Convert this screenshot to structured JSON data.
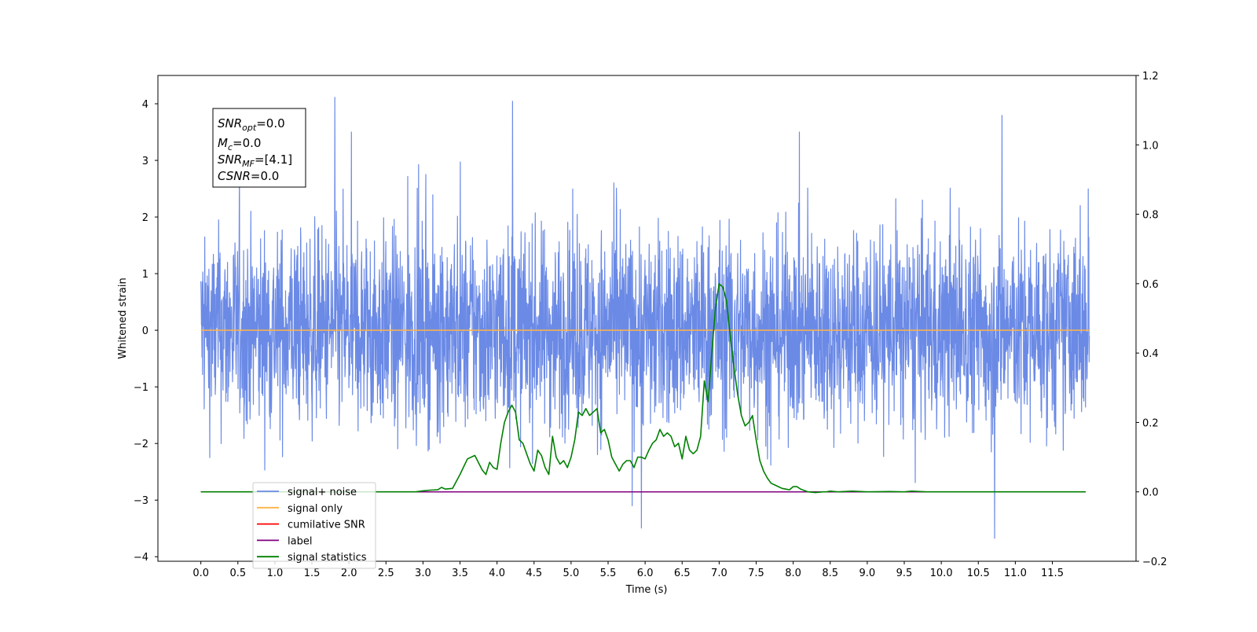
{
  "chart_data": {
    "type": "line",
    "xlabel": "Time (s)",
    "ylabel": "Whitened strain",
    "xlim": [
      -0.58,
      12.63
    ],
    "ylim": [
      -4.08,
      4.5
    ],
    "y2lim": [
      -0.2,
      1.2
    ],
    "x_ticks": [
      "0.0",
      "0.5",
      "1.0",
      "1.5",
      "2.0",
      "2.5",
      "3.0",
      "3.5",
      "4.0",
      "4.5",
      "5.0",
      "5.5",
      "6.0",
      "6.5",
      "7.0",
      "7.5",
      "8.0",
      "8.5",
      "9.0",
      "9.5",
      "10.0",
      "10.5",
      "11.0",
      "11.5"
    ],
    "y_ticks": [
      "4",
      "3",
      "2",
      "1",
      "0",
      "−1",
      "−2",
      "−3",
      "−4"
    ],
    "y2_ticks": [
      "1.2",
      "1.0",
      "0.8",
      "0.6",
      "0.4",
      "0.2",
      "0.0",
      "−0.2"
    ],
    "legend_position": "lower-left",
    "series": [
      {
        "name": "signal+ noise",
        "color": "#6b8ae6",
        "axis": "left",
        "kind": "noise",
        "t_range": [
          0.0,
          12.0
        ],
        "envelope": [
          -3.5,
          4.1
        ],
        "notable_peaks": [
          [
            1.81,
            4.12
          ],
          [
            4.21,
            4.05
          ],
          [
            10.82,
            3.8
          ],
          [
            5.95,
            -3.5
          ],
          [
            10.72,
            -3.68
          ]
        ]
      },
      {
        "name": "signal only",
        "color": "#ffb347",
        "axis": "left",
        "x": [
          0.0,
          12.0
        ],
        "values": [
          0.0,
          0.0
        ]
      },
      {
        "name": "cumilative SNR",
        "color": "#ff0000",
        "axis": "right",
        "x": [
          0.0,
          11.95
        ],
        "values": [
          0.0,
          0.0
        ]
      },
      {
        "name": "label",
        "color": "#800080",
        "axis": "right",
        "x": [
          0.0,
          11.95
        ],
        "values": [
          0.0,
          0.0
        ]
      },
      {
        "name": "signal statistics",
        "color": "#008000",
        "axis": "right",
        "x": [
          0.0,
          0.5,
          1.0,
          1.5,
          2.0,
          2.5,
          2.9,
          3.0,
          3.1,
          3.2,
          3.25,
          3.3,
          3.4,
          3.5,
          3.6,
          3.7,
          3.8,
          3.85,
          3.9,
          3.95,
          4.0,
          4.05,
          4.1,
          4.15,
          4.2,
          4.25,
          4.3,
          4.35,
          4.4,
          4.45,
          4.5,
          4.55,
          4.6,
          4.65,
          4.7,
          4.75,
          4.8,
          4.85,
          4.9,
          4.95,
          5.0,
          5.05,
          5.1,
          5.15,
          5.2,
          5.25,
          5.3,
          5.35,
          5.4,
          5.45,
          5.5,
          5.55,
          5.6,
          5.65,
          5.7,
          5.75,
          5.8,
          5.85,
          5.9,
          5.95,
          6.0,
          6.05,
          6.1,
          6.15,
          6.2,
          6.25,
          6.3,
          6.35,
          6.4,
          6.45,
          6.5,
          6.55,
          6.6,
          6.65,
          6.7,
          6.75,
          6.8,
          6.85,
          6.9,
          6.95,
          7.0,
          7.05,
          7.1,
          7.15,
          7.2,
          7.25,
          7.3,
          7.35,
          7.4,
          7.45,
          7.5,
          7.55,
          7.6,
          7.65,
          7.7,
          7.75,
          7.8,
          7.85,
          7.9,
          7.95,
          8.0,
          8.05,
          8.1,
          8.2,
          8.3,
          8.4,
          8.45,
          8.5,
          8.6,
          8.8,
          9.0,
          9.3,
          9.5,
          9.6,
          9.8,
          10.0,
          10.5,
          11.0,
          11.5,
          11.95
        ],
        "values": [
          0.0,
          0.0,
          0.0,
          0.0,
          0.0,
          0.0,
          0.0,
          0.003,
          0.005,
          0.006,
          0.013,
          0.008,
          0.01,
          0.05,
          0.095,
          0.105,
          0.063,
          0.05,
          0.085,
          0.07,
          0.065,
          0.14,
          0.2,
          0.23,
          0.25,
          0.23,
          0.15,
          0.14,
          0.11,
          0.08,
          0.06,
          0.12,
          0.105,
          0.07,
          0.05,
          0.16,
          0.1,
          0.08,
          0.09,
          0.07,
          0.1,
          0.15,
          0.23,
          0.22,
          0.24,
          0.22,
          0.23,
          0.24,
          0.17,
          0.18,
          0.15,
          0.1,
          0.08,
          0.06,
          0.08,
          0.09,
          0.09,
          0.07,
          0.1,
          0.1,
          0.095,
          0.12,
          0.14,
          0.15,
          0.18,
          0.16,
          0.17,
          0.16,
          0.13,
          0.14,
          0.095,
          0.16,
          0.12,
          0.11,
          0.12,
          0.16,
          0.32,
          0.26,
          0.4,
          0.53,
          0.6,
          0.59,
          0.55,
          0.45,
          0.36,
          0.28,
          0.22,
          0.19,
          0.2,
          0.22,
          0.15,
          0.09,
          0.06,
          0.04,
          0.025,
          0.02,
          0.015,
          0.01,
          0.008,
          0.006,
          0.015,
          0.015,
          0.008,
          0.0,
          -0.002,
          0.0,
          0.0,
          0.002,
          0.0,
          0.002,
          0.0,
          0.001,
          0.0,
          0.002,
          0.0,
          0.0,
          0.0,
          0.0,
          0.0,
          0.0
        ]
      }
    ]
  },
  "info_box": {
    "lines": [
      {
        "base": "SNR",
        "sub": "opt",
        "value": "=0.0"
      },
      {
        "base": "M",
        "sub": "c",
        "value": "=0.0"
      },
      {
        "base": "SNR",
        "sub": "MF",
        "value": "=[4.1]"
      },
      {
        "base": "CSNR",
        "sub": "",
        "value": "=0.0"
      }
    ]
  }
}
